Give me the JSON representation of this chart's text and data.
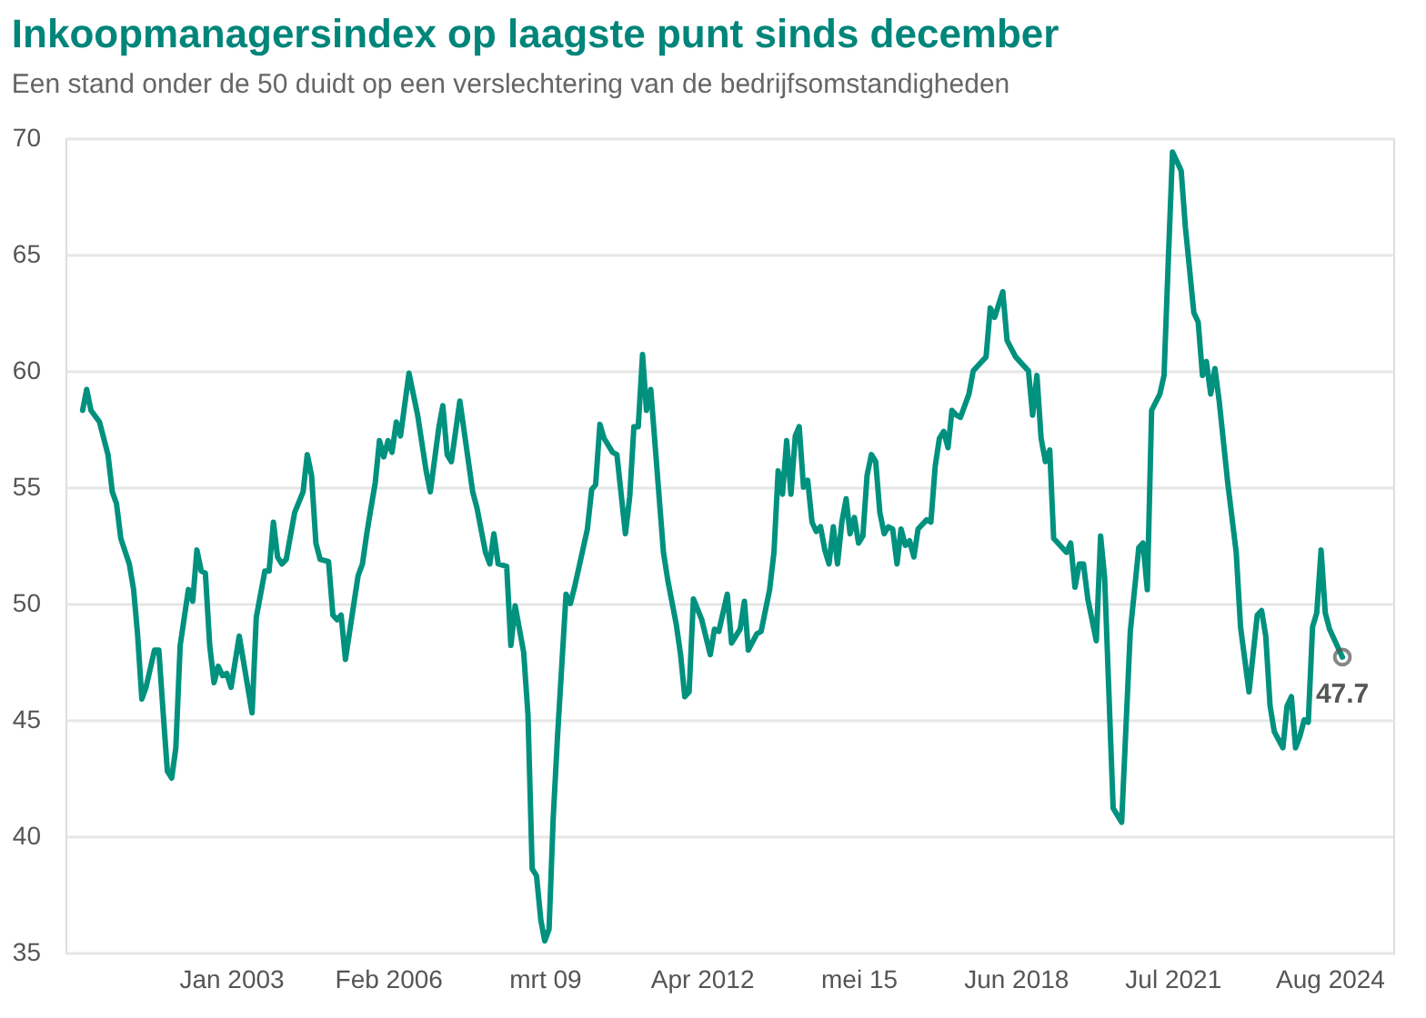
{
  "chart_data": {
    "type": "line",
    "title": "Inkoopmanagersindex op laagste punt sinds december",
    "subtitle": "Een stand onder de 50 duidt op een verslechtering van de bedrijfsomstandigheden",
    "x": [
      "2000-02",
      "2000-03",
      "2000-04",
      "2000-06",
      "2000-08",
      "2000-09",
      "2000-10",
      "2000-11",
      "2001-01",
      "2001-02",
      "2001-03",
      "2001-04",
      "2001-05",
      "2001-07",
      "2001-08",
      "2001-09",
      "2001-10",
      "2001-11",
      "2001-12",
      "2002-01",
      "2002-03",
      "2002-04",
      "2002-05",
      "2002-06",
      "2002-07",
      "2002-08",
      "2002-09",
      "2002-10",
      "2002-11",
      "2002-12",
      "2003-01",
      "2003-03",
      "2003-06",
      "2003-07",
      "2003-09",
      "2003-10",
      "2003-11",
      "2003-12",
      "2004-01",
      "2004-02",
      "2004-04",
      "2004-06",
      "2004-07",
      "2004-08",
      "2004-09",
      "2004-10",
      "2004-12",
      "2005-01",
      "2005-02",
      "2005-03",
      "2005-04",
      "2005-05",
      "2005-07",
      "2005-08",
      "2005-09",
      "2005-10",
      "2005-11",
      "2005-12",
      "2006-01",
      "2006-02",
      "2006-03",
      "2006-04",
      "2006-05",
      "2006-07",
      "2006-09",
      "2006-11",
      "2006-12",
      "2007-02",
      "2007-03",
      "2007-04",
      "2007-05",
      "2007-07",
      "2007-08",
      "2007-10",
      "2007-11",
      "2008-01",
      "2008-02",
      "2008-03",
      "2008-04",
      "2008-06",
      "2008-07",
      "2008-08",
      "2008-10",
      "2008-11",
      "2008-12",
      "2009-01",
      "2009-02",
      "2009-03",
      "2009-04",
      "2009-05",
      "2009-06",
      "2009-08",
      "2009-09",
      "2009-10",
      "2010-01",
      "2010-02",
      "2010-03",
      "2010-04",
      "2010-05",
      "2010-07",
      "2010-08",
      "2010-10",
      "2010-11",
      "2010-12",
      "2011-01",
      "2011-02",
      "2011-03",
      "2011-04",
      "2011-07",
      "2011-08",
      "2011-10",
      "2011-11",
      "2011-12",
      "2012-01",
      "2012-02",
      "2012-04",
      "2012-06",
      "2012-07",
      "2012-08",
      "2012-10",
      "2012-11",
      "2013-01",
      "2013-02",
      "2013-03",
      "2013-05",
      "2013-06",
      "2013-08",
      "2013-09",
      "2013-10",
      "2013-11",
      "2013-12",
      "2014-01",
      "2014-02",
      "2014-03",
      "2014-04",
      "2014-05",
      "2014-06",
      "2014-07",
      "2014-08",
      "2014-09",
      "2014-10",
      "2014-11",
      "2014-12",
      "2015-01",
      "2015-02",
      "2015-03",
      "2015-04",
      "2015-05",
      "2015-06",
      "2015-07",
      "2015-08",
      "2015-09",
      "2015-10",
      "2015-11",
      "2015-12",
      "2016-01",
      "2016-02",
      "2016-03",
      "2016-04",
      "2016-05",
      "2016-06",
      "2016-07",
      "2016-09",
      "2016-10",
      "2016-11",
      "2016-12",
      "2017-01",
      "2017-02",
      "2017-03",
      "2017-04",
      "2017-05",
      "2017-07",
      "2017-08",
      "2017-11",
      "2017-12",
      "2018-01",
      "2018-03",
      "2018-04",
      "2018-06",
      "2018-08",
      "2018-09",
      "2018-10",
      "2018-11",
      "2018-12",
      "2019-01",
      "2019-02",
      "2019-03",
      "2019-05",
      "2019-06",
      "2019-07",
      "2019-08",
      "2019-09",
      "2019-10",
      "2019-11",
      "2020-01",
      "2020-02",
      "2020-03",
      "2020-05",
      "2020-07",
      "2020-08",
      "2020-09",
      "2020-11",
      "2020-12",
      "2021-01",
      "2021-02",
      "2021-04",
      "2021-05",
      "2021-06",
      "2021-07",
      "2021-09",
      "2021-10",
      "2021-12",
      "2022-01",
      "2022-02",
      "2022-03",
      "2022-04",
      "2022-05",
      "2022-06",
      "2022-08",
      "2022-10",
      "2022-11",
      "2023-01",
      "2023-03",
      "2023-04",
      "2023-05",
      "2023-06",
      "2023-07",
      "2023-09",
      "2023-10",
      "2023-11",
      "2023-12",
      "2024-01",
      "2024-02",
      "2024-03",
      "2024-04",
      "2024-05",
      "2024-06",
      "2024-07",
      "2024-08",
      "2024-11"
    ],
    "series": [
      {
        "color": "#00917f",
        "values": [
          58.3,
          59.2,
          58.3,
          57.8,
          56.4,
          54.8,
          54.3,
          52.8,
          51.7,
          50.6,
          48.7,
          45.9,
          46.4,
          48.0,
          48.0,
          45.3,
          42.8,
          42.5,
          43.8,
          48.2,
          50.6,
          50.1,
          52.3,
          51.4,
          51.3,
          48.2,
          46.6,
          47.3,
          46.9,
          47.0,
          46.4,
          48.6,
          45.3,
          49.4,
          51.4,
          51.4,
          53.5,
          52.0,
          51.7,
          51.9,
          53.9,
          54.8,
          56.4,
          55.5,
          52.6,
          51.9,
          51.8,
          49.5,
          49.3,
          49.5,
          47.6,
          48.8,
          51.2,
          51.7,
          53.0,
          54.1,
          55.2,
          57.0,
          56.3,
          57.0,
          56.5,
          57.8,
          57.2,
          59.9,
          58.1,
          55.7,
          54.8,
          57.6,
          58.5,
          56.4,
          56.1,
          58.7,
          57.4,
          54.8,
          54.1,
          52.2,
          51.7,
          53.0,
          51.7,
          51.6,
          48.2,
          49.9,
          47.9,
          45.2,
          38.6,
          38.3,
          36.4,
          35.5,
          36.0,
          40.8,
          44.3,
          50.4,
          50.0,
          50.7,
          53.2,
          54.9,
          55.1,
          57.7,
          57.1,
          56.5,
          56.4,
          53.0,
          54.6,
          57.6,
          57.6,
          60.7,
          58.3,
          59.2,
          52.2,
          51.0,
          49.1,
          47.8,
          46.0,
          46.2,
          50.2,
          49.3,
          47.8,
          48.9,
          48.8,
          50.4,
          48.3,
          48.9,
          50.1,
          48.0,
          48.7,
          48.8,
          50.6,
          52.2,
          55.7,
          54.7,
          57.0,
          54.7,
          57.2,
          57.6,
          55.0,
          55.3,
          53.5,
          53.1,
          53.3,
          52.3,
          51.7,
          53.3,
          51.7,
          53.5,
          54.5,
          53.0,
          53.7,
          52.6,
          52.9,
          55.5,
          56.4,
          56.1,
          53.9,
          53.0,
          53.3,
          53.2,
          51.7,
          53.2,
          52.5,
          52.7,
          52.0,
          53.2,
          53.6,
          53.5,
          55.9,
          57.1,
          57.4,
          56.7,
          58.3,
          58.1,
          58.0,
          59.0,
          60.0,
          60.6,
          62.7,
          62.3,
          63.4,
          61.3,
          60.6,
          60.2,
          60.0,
          58.1,
          59.8,
          57.1,
          56.1,
          56.6,
          52.8,
          52.4,
          52.2,
          52.6,
          50.7,
          51.7,
          51.7,
          50.2,
          48.4,
          52.9,
          51.1,
          41.2,
          40.6,
          44.7,
          48.8,
          52.4,
          52.6,
          50.6,
          58.3,
          59.0,
          59.8,
          64.8,
          69.4,
          68.6,
          66.2,
          62.5,
          62.1,
          59.8,
          60.4,
          59.0,
          60.1,
          58.7,
          55.2,
          52.2,
          49.0,
          46.2,
          49.5,
          49.7,
          48.6,
          45.6,
          44.5,
          43.8,
          45.6,
          46.0,
          43.8,
          44.3,
          45.0,
          44.9,
          49.0,
          49.6,
          52.3,
          49.6,
          48.9,
          47.7
        ]
      }
    ],
    "xlim": [
      "1999-10",
      "2025-11"
    ],
    "xticks": [
      {
        "value": "2003-01",
        "label": "Jan 2003"
      },
      {
        "value": "2006-02",
        "label": "Feb 2006"
      },
      {
        "value": "2009-03",
        "label": "mrt 09"
      },
      {
        "value": "2012-04",
        "label": "Apr 2012"
      },
      {
        "value": "2015-05",
        "label": "mei 15"
      },
      {
        "value": "2018-06",
        "label": "Jun 2018"
      },
      {
        "value": "2021-07",
        "label": "Jul 2021"
      },
      {
        "value": "2024-08",
        "label": "Aug 2024"
      }
    ],
    "ylim": [
      35,
      70
    ],
    "yticks": [
      35,
      40,
      45,
      50,
      55,
      60,
      65,
      70
    ],
    "grid": "y",
    "annotations": [
      {
        "text": "47.7",
        "x": "2024-11",
        "y": 47.7
      }
    ]
  }
}
